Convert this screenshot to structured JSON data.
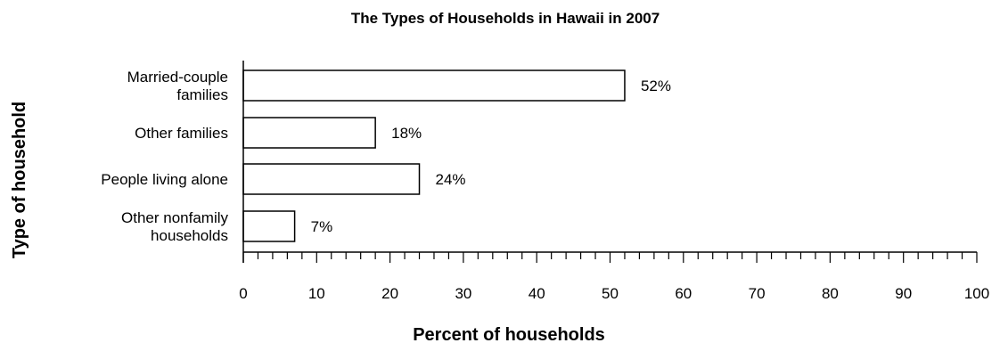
{
  "chart_data": {
    "type": "bar",
    "orientation": "horizontal",
    "title": "The Types of Households in Hawaii in 2007",
    "xlabel": "Percent of households",
    "ylabel": "Type of household",
    "categories": [
      [
        "Married-couple",
        "families"
      ],
      [
        "Other families"
      ],
      [
        "People living alone"
      ],
      [
        "Other nonfamily",
        "households"
      ]
    ],
    "values": [
      52,
      18,
      24,
      7
    ],
    "data_labels": [
      "52%",
      "18%",
      "24%",
      "7%"
    ],
    "xlim": [
      0,
      100
    ],
    "xticks": [
      "0",
      "10",
      "20",
      "30",
      "40",
      "50",
      "60",
      "70",
      "80",
      "90",
      "100"
    ],
    "minor_tick_step": 2,
    "grid": false,
    "legend": "none",
    "colors": {
      "bar_fill": "#ffffff",
      "bar_stroke": "#000000",
      "text": "#000000"
    }
  }
}
